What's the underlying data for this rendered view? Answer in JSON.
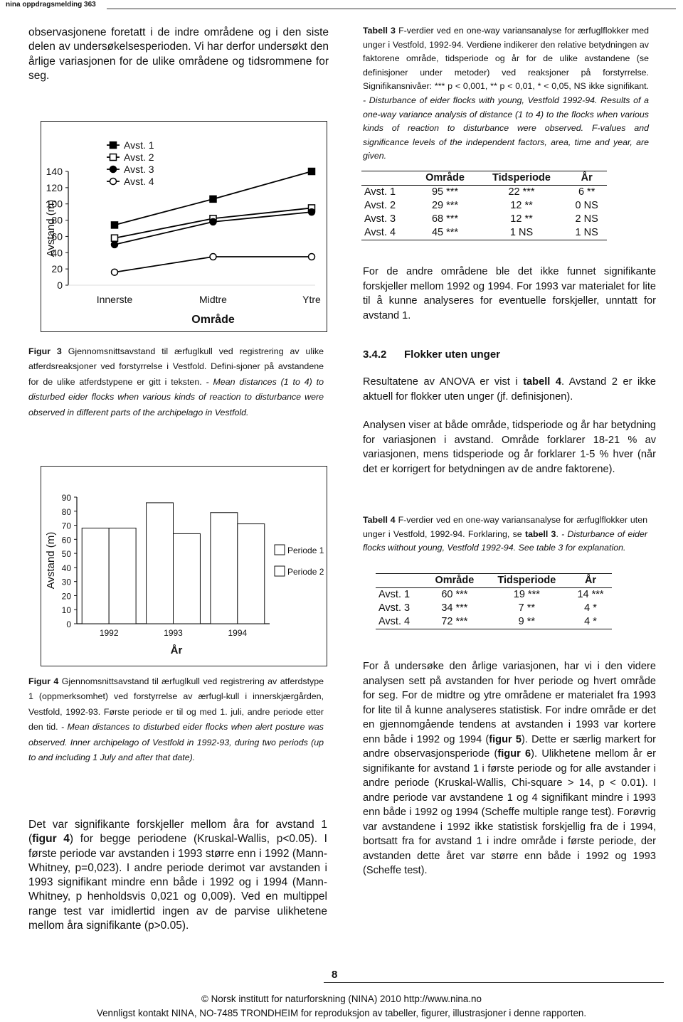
{
  "header": {
    "title": "nina oppdragsmelding 363"
  },
  "left": {
    "intro": "observasjonene foretatt i de indre områdene og i den siste delen av undersøkelsesperioden. Vi har derfor undersøkt den årlige variasjonen for de ulike områdene og tidsrommene for seg.",
    "figure3": {
      "chart_data": {
        "type": "line",
        "categories": [
          "Innerste",
          "Midtre",
          "Ytre"
        ],
        "xlabel": "Område",
        "ylabel": "Avstand (m)",
        "ylim": [
          0,
          140
        ],
        "yticks": [
          0,
          20,
          40,
          60,
          80,
          100,
          120,
          140
        ],
        "legend": "top-left",
        "series": [
          {
            "name": "Avst. 1",
            "color": "#000000",
            "marker": "square",
            "filled": true,
            "values": [
              74,
              106,
              140
            ]
          },
          {
            "name": "Avst. 2",
            "color": "#000000",
            "marker": "square",
            "filled": false,
            "values": [
              58,
              82,
              95
            ]
          },
          {
            "name": "Avst. 3",
            "color": "#000000",
            "marker": "circle",
            "filled": true,
            "values": [
              50,
              78,
              90
            ]
          },
          {
            "name": "Avst. 4",
            "color": "#000000",
            "marker": "circle",
            "filled": false,
            "values": [
              16,
              35,
              35
            ]
          }
        ]
      },
      "caption": {
        "label": "Figur 3",
        "text": "Gjennomsnittsavstand til ærfuglkull ved registrering av ulike atferdsreaksjoner ved forstyrrelse i Vestfold. Defini-sjoner på avstandene for de ulike atferdstypene er gitt i teksten.",
        "english": "- Mean distances (1 to 4) to disturbed eider flocks when various kinds of reaction to disturbance were observed in different parts of the archipelago in Vestfold."
      }
    },
    "figure4": {
      "chart_data": {
        "type": "bar",
        "categories": [
          "1992",
          "1993",
          "1994"
        ],
        "xlabel": "År",
        "ylabel": "Avstand (m)",
        "ylim": [
          0,
          90
        ],
        "yticks": [
          0,
          10,
          20,
          30,
          40,
          50,
          60,
          70,
          80,
          90
        ],
        "legend": "right",
        "series": [
          {
            "name": "Periode 1",
            "color": "#ffffff",
            "values": [
              68,
              86,
              79
            ]
          },
          {
            "name": "Periode 2",
            "color": "#ffffff",
            "values": [
              68,
              64,
              71
            ]
          }
        ]
      },
      "caption": {
        "label": "Figur 4",
        "text": "Gjennomsnittsavstand til ærfuglkull ved registrering av atferdstype 1 (oppmerksomhet) ved forstyrrelse av ærfugl-kull i innerskjærgården, Vestfold, 1992-93. Første periode er til og med 1. juli, andre periode etter den tid.",
        "english": "- Mean distances to disturbed eider flocks when alert posture was observed. Inner archipelago of Vestfold in 1992-93, during two periods (up to and including 1 July and after that date)."
      }
    },
    "closing": [
      "Det var signifikante forskjeller mellom åra for avstand 1 (",
      "figur 4",
      ") for begge periodene (Kruskal-Wallis, p<0.05). I første periode var avstanden i 1993 større enn i 1992 (Mann-Whitney, p=0,023). I andre periode derimot var avstanden i 1993 signifikant mindre enn både i 1992 og i 1994 (Mann-Whitney, p henholdsvis 0,021 og 0,009). Ved en multippel range test var imidlertid ingen av de parvise ulikhetene mellom åra signifikante (p>0.05)."
    ]
  },
  "right": {
    "table3": {
      "caption": {
        "label": "Tabell 3",
        "text": "F-verdier ved en one-way variansanalyse for ærfuglflokker med unger i Vestfold, 1992-94. Verdiene indikerer den relative betydningen av faktorene område, tidsperiode og år for de ulike avstandene (se definisjoner under metoder) ved reaksjoner på forstyrrelse. Signifikansnivåer: *** p < 0,001, ** p < 0,01, * < 0,05, NS ikke signifikant.",
        "english": "- Disturbance of eider flocks with young, Vestfold 1992-94. Results of a one-way variance analysis of distance (1 to 4) to the flocks when various kinds of reaction to disturbance were observed. F-values and significance levels of the independent factors, area, time and year, are given."
      },
      "columns": [
        "Område",
        "Tidsperiode",
        "År"
      ],
      "rows": [
        [
          "Avst. 1",
          "95 ***",
          "22 ***",
          "6 **"
        ],
        [
          "Avst. 2",
          "29 ***",
          "12 **",
          "0 NS"
        ],
        [
          "Avst. 3",
          "68 ***",
          "12 **",
          "2 NS"
        ],
        [
          "Avst. 4",
          "45 ***",
          "1 NS",
          "1 NS"
        ]
      ]
    },
    "para1": "For de andre områdene ble det ikke funnet signifikante forskjeller mellom 1992 og 1994. For 1993 var materialet for lite til å kunne analyseres for eventuelle forskjeller, unntatt for avstand 1.",
    "section": {
      "number": "3.4.2",
      "title": "Flokker uten unger"
    },
    "para2": [
      "Resultatene av ANOVA er vist i ",
      "tabell 4",
      ". Avstand 2 er ikke aktuell for flokker uten unger (jf. definisjonen)."
    ],
    "para3": "Analysen viser at både område, tidsperiode og år har betydning for variasjonen i avstand. Område forklarer 18-21 % av variasjonen, mens tidsperiode og år forklarer 1-5 % hver (når det er korrigert for betydningen av de andre faktorene).",
    "table4": {
      "caption": {
        "label": "Tabell 4",
        "text": "F-verdier ved en one-way variansanalyse for ærfuglflokker uten unger i Vestfold, 1992-94. Forklaring, se ",
        "ref": "tabell 3",
        "end": ".",
        "english": "- Disturbance of eider flocks without young, Vestfold 1992-94. See table 3 for explanation."
      },
      "columns": [
        "Område",
        "Tidsperiode",
        "År"
      ],
      "rows": [
        [
          "Avst. 1",
          "60 ***",
          "19 ***",
          "14 ***"
        ],
        [
          "Avst. 3",
          "34 ***",
          "7 **",
          "4 *"
        ],
        [
          "Avst. 4",
          "72 ***",
          "9 **",
          "4 *"
        ]
      ]
    },
    "para4": [
      "For å undersøke den årlige variasjonen, har vi i den videre analysen sett på avstanden for hver periode og hvert område for seg. For de midtre og ytre områdene er materialet fra 1993 for lite til å kunne analyseres statistisk. For indre område er det en gjennomgående tendens at avstanden i 1993 var kortere enn både i 1992 og 1994 (",
      "figur 5",
      "). Dette er særlig markert for andre observasjonsperiode (",
      "figur 6",
      "). Ulikhetene mellom år er signifikante for avstand 1 i første periode og for alle avstander i andre periode (Kruskal-Wallis, Chi-square > 14, p < 0.01). I andre periode var avstandene 1 og 4 signifikant mindre i 1993 enn både i 1992 og 1994 (Scheffe multiple range test). Forøvrig var avstandene i 1992 ikke statistisk forskjellig fra de i 1994, bortsatt fra for avstand 1 i indre område i første periode, der avstanden dette året var større enn både i 1992 og 1993 (Scheffe test)."
    ]
  },
  "footer": {
    "page": "8",
    "line1": "© Norsk institutt for naturforskning (NINA) 2010 http://www.nina.no",
    "line2": "Vennligst kontakt NINA, NO-7485 TRONDHEIM for reproduksjon av tabeller, figurer, illustrasjoner i denne rapporten."
  }
}
